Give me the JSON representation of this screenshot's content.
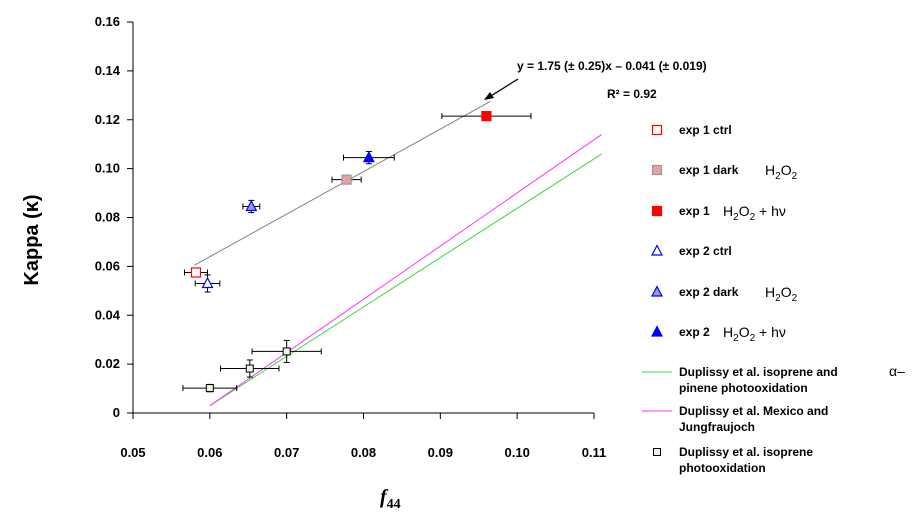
{
  "chart_data": {
    "type": "scatter",
    "ylabel": "Kappa (κ)",
    "xlabel_main": "f",
    "xlabel_sub": "44",
    "xlim": [
      0.05,
      0.11
    ],
    "ylim": [
      0,
      0.16
    ],
    "x_ticks": [
      "0.05",
      "0.06",
      "0.07",
      "0.08",
      "0.09",
      "0.10",
      "0.11"
    ],
    "y_ticks": [
      "0",
      "0.02",
      "0.04",
      "0.06",
      "0.08",
      "0.10",
      "0.12",
      "0.14",
      "0.16"
    ],
    "grid": false,
    "annotation": {
      "equation": "y = 1.75 (± 0.25)x – 0.041 (± 0.019)",
      "r2": "R² = 0.92"
    },
    "fit_line": {
      "x": [
        0.058,
        0.0965
      ],
      "y": [
        0.0605,
        0.1275
      ],
      "color": "#808080"
    },
    "lines": [
      {
        "key": "l1",
        "name": "Duplissy et al. isoprene and α-pinene photooxidation",
        "color": "#33dd33",
        "x": [
          0.06,
          0.111
        ],
        "y": [
          0.003,
          0.106
        ]
      },
      {
        "key": "l2",
        "name": "Duplissy et al. Mexico and Jungfraujoch",
        "color": "#ff33ff",
        "x": [
          0.06,
          0.111
        ],
        "y": [
          0.003,
          0.114
        ]
      }
    ],
    "points": [
      {
        "series": "exp 1 ctrl",
        "marker": "square",
        "fill": "#ffffff",
        "stroke": "#ff0000",
        "x": 0.0582,
        "y": 0.0575,
        "xerr": 0.0015,
        "yerr": 0
      },
      {
        "series": "exp 1 dark H2O2",
        "marker": "square",
        "fill": "#e8a0a0",
        "stroke": "#999999",
        "x": 0.0778,
        "y": 0.0955,
        "xerr": 0.0019,
        "yerr": 0
      },
      {
        "series": "exp 1 H2O2 + hν",
        "marker": "square",
        "fill": "#ff0000",
        "stroke": "#ff0000",
        "x": 0.096,
        "y": 0.1215,
        "xerr": 0.0058,
        "yerr": 0
      },
      {
        "series": "exp 2 ctrl",
        "marker": "triangle",
        "fill": "#ffffff",
        "stroke": "#0000ff",
        "x": 0.0597,
        "y": 0.053,
        "xerr": 0.0016,
        "yerr": 0.0035
      },
      {
        "series": "exp 2 dark H2O2",
        "marker": "triangle",
        "fill": "#9999dd",
        "stroke": "#0000ff",
        "x": 0.0654,
        "y": 0.0845,
        "xerr": 0.0011,
        "yerr": 0.0025
      },
      {
        "series": "exp 2 H2O2 + hν",
        "marker": "triangle",
        "fill": "#0000ff",
        "stroke": "#0000ff",
        "x": 0.0807,
        "y": 0.1045,
        "xerr": 0.0033,
        "yerr": 0.0025
      },
      {
        "series": "Duplissy et al. isoprene photooxidation",
        "marker": "square-sm",
        "fill": "#e8f4e0",
        "stroke": "#000000",
        "x": 0.06,
        "y": 0.0102,
        "xerr": 0.0035,
        "yerr": 0.0015
      },
      {
        "series": "Duplissy et al. isoprene photooxidation",
        "marker": "square-sm",
        "fill": "#e8f4e0",
        "stroke": "#000000",
        "x": 0.0652,
        "y": 0.0182,
        "xerr": 0.0038,
        "yerr": 0.0035
      },
      {
        "series": "Duplissy et al. isoprene photooxidation",
        "marker": "square-sm",
        "fill": "#e8f4e0",
        "stroke": "#000000",
        "x": 0.07,
        "y": 0.0252,
        "xerr": 0.0045,
        "yerr": 0.0045
      }
    ],
    "legend": {
      "placement": "right",
      "items": [
        {
          "marker": "square",
          "fill": "#ffffff",
          "stroke": "#ff0000",
          "label": "exp 1 ctrl"
        },
        {
          "marker": "square",
          "fill": "#e8a0a0",
          "stroke": "#999999",
          "label": "exp 1 dark",
          "formula_main": "H",
          "formula_sub": "2",
          "formula_end": "O",
          "formula_sub2": "2"
        },
        {
          "marker": "square",
          "fill": "#ff0000",
          "stroke": "#ff0000",
          "label": "exp 1",
          "formula_main": "H",
          "formula_sub": "2",
          "formula_end": "O",
          "formula_sub2": "2",
          "formula_tail": " + hν"
        },
        {
          "marker": "triangle",
          "fill": "#ffffff",
          "stroke": "#0000ff",
          "label": "exp 2 ctrl"
        },
        {
          "marker": "triangle",
          "fill": "#9999dd",
          "stroke": "#0000ff",
          "label": "exp 2 dark",
          "formula_main": "H",
          "formula_sub": "2",
          "formula_end": "O",
          "formula_sub2": "2"
        },
        {
          "marker": "triangle",
          "fill": "#0000ff",
          "stroke": "#0000ff",
          "label": "exp 2",
          "formula_main": "H",
          "formula_sub": "2",
          "formula_end": "O",
          "formula_sub2": "2",
          "formula_tail": " + hν"
        },
        {
          "marker": "line",
          "stroke": "#33dd33",
          "label": "Duplissy et al. isoprene and",
          "label2": "pinene photooxidation",
          "extra": "α–"
        },
        {
          "marker": "line",
          "stroke": "#ff33ff",
          "label": "Duplissy et al. Mexico and",
          "label2": "Jungfraujoch"
        },
        {
          "marker": "square-sm",
          "fill": "#e8f4e0",
          "stroke": "#000000",
          "label": "Duplissy et al. isoprene",
          "label2": "photooxidation"
        }
      ]
    }
  }
}
